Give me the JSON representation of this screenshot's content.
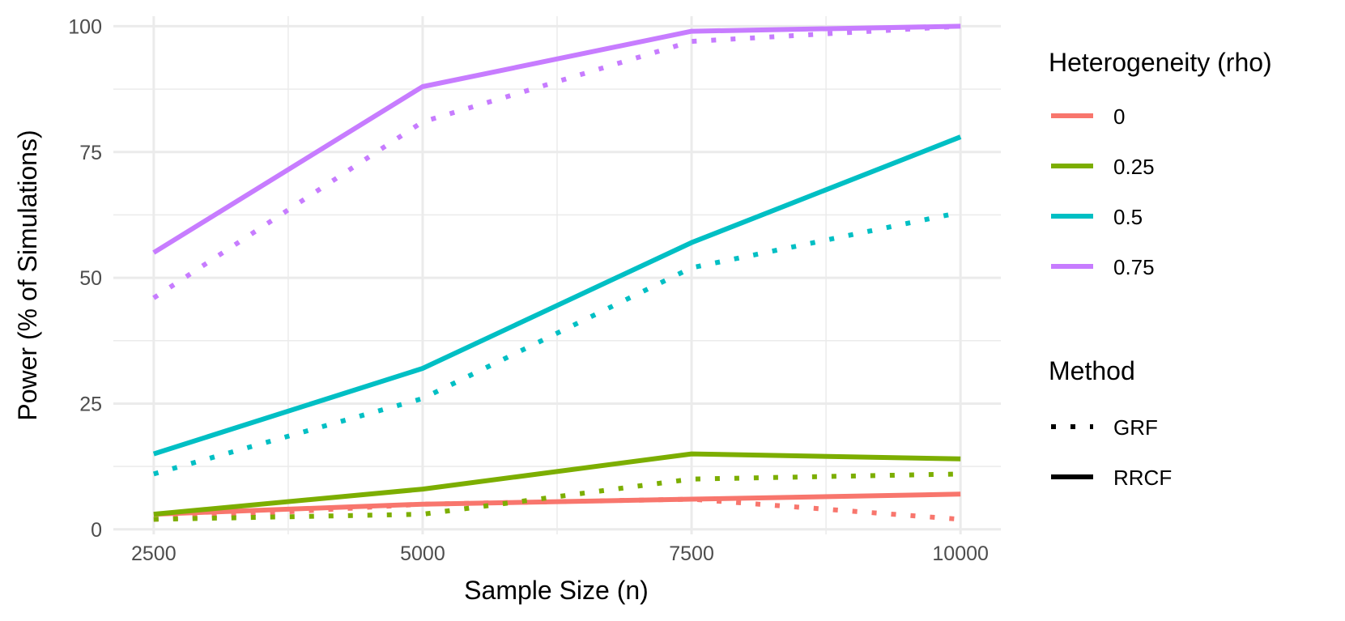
{
  "chart_data": {
    "type": "line",
    "title": "",
    "xlabel": "Sample Size (n)",
    "ylabel": "Power (% of Simulations)",
    "x": [
      2500,
      5000,
      7500,
      10000
    ],
    "xticks": [
      "2500",
      "5000",
      "7500",
      "10000"
    ],
    "yticks": [
      "0",
      "25",
      "50",
      "75",
      "100"
    ],
    "xlim": [
      2125,
      10375
    ],
    "ylim": [
      -1,
      102
    ],
    "grid": true,
    "legend_position": "right",
    "color_legend": {
      "title": "Heterogeneity (rho)",
      "entries": [
        {
          "label": "0",
          "color": "#F8766D"
        },
        {
          "label": "0.25",
          "color": "#7CAE00"
        },
        {
          "label": "0.5",
          "color": "#00BFC4"
        },
        {
          "label": "0.75",
          "color": "#C77CFF"
        }
      ]
    },
    "linetype_legend": {
      "title": "Method",
      "entries": [
        {
          "label": "GRF",
          "style": "dotted"
        },
        {
          "label": "RRCF",
          "style": "solid"
        }
      ]
    },
    "series": [
      {
        "name": "rho 0 RRCF",
        "rho": "0",
        "method": "RRCF",
        "color": "#F8766D",
        "values": [
          3,
          5,
          6,
          7
        ]
      },
      {
        "name": "rho 0 GRF",
        "rho": "0",
        "method": "GRF",
        "color": "#F8766D",
        "values": [
          2,
          5,
          6,
          2
        ]
      },
      {
        "name": "rho 0.25 RRCF",
        "rho": "0.25",
        "method": "RRCF",
        "color": "#7CAE00",
        "values": [
          3,
          8,
          15,
          14
        ]
      },
      {
        "name": "rho 0.25 GRF",
        "rho": "0.25",
        "method": "GRF",
        "color": "#7CAE00",
        "values": [
          2,
          3,
          10,
          11
        ]
      },
      {
        "name": "rho 0.5 RRCF",
        "rho": "0.5",
        "method": "RRCF",
        "color": "#00BFC4",
        "values": [
          15,
          32,
          57,
          78
        ]
      },
      {
        "name": "rho 0.5 GRF",
        "rho": "0.5",
        "method": "GRF",
        "color": "#00BFC4",
        "values": [
          11,
          26,
          52,
          63
        ]
      },
      {
        "name": "rho 0.75 RRCF",
        "rho": "0.75",
        "method": "RRCF",
        "color": "#C77CFF",
        "values": [
          55,
          88,
          99,
          100
        ]
      },
      {
        "name": "rho 0.75 GRF",
        "rho": "0.75",
        "method": "GRF",
        "color": "#C77CFF",
        "values": [
          46,
          81,
          97,
          100
        ]
      }
    ]
  }
}
